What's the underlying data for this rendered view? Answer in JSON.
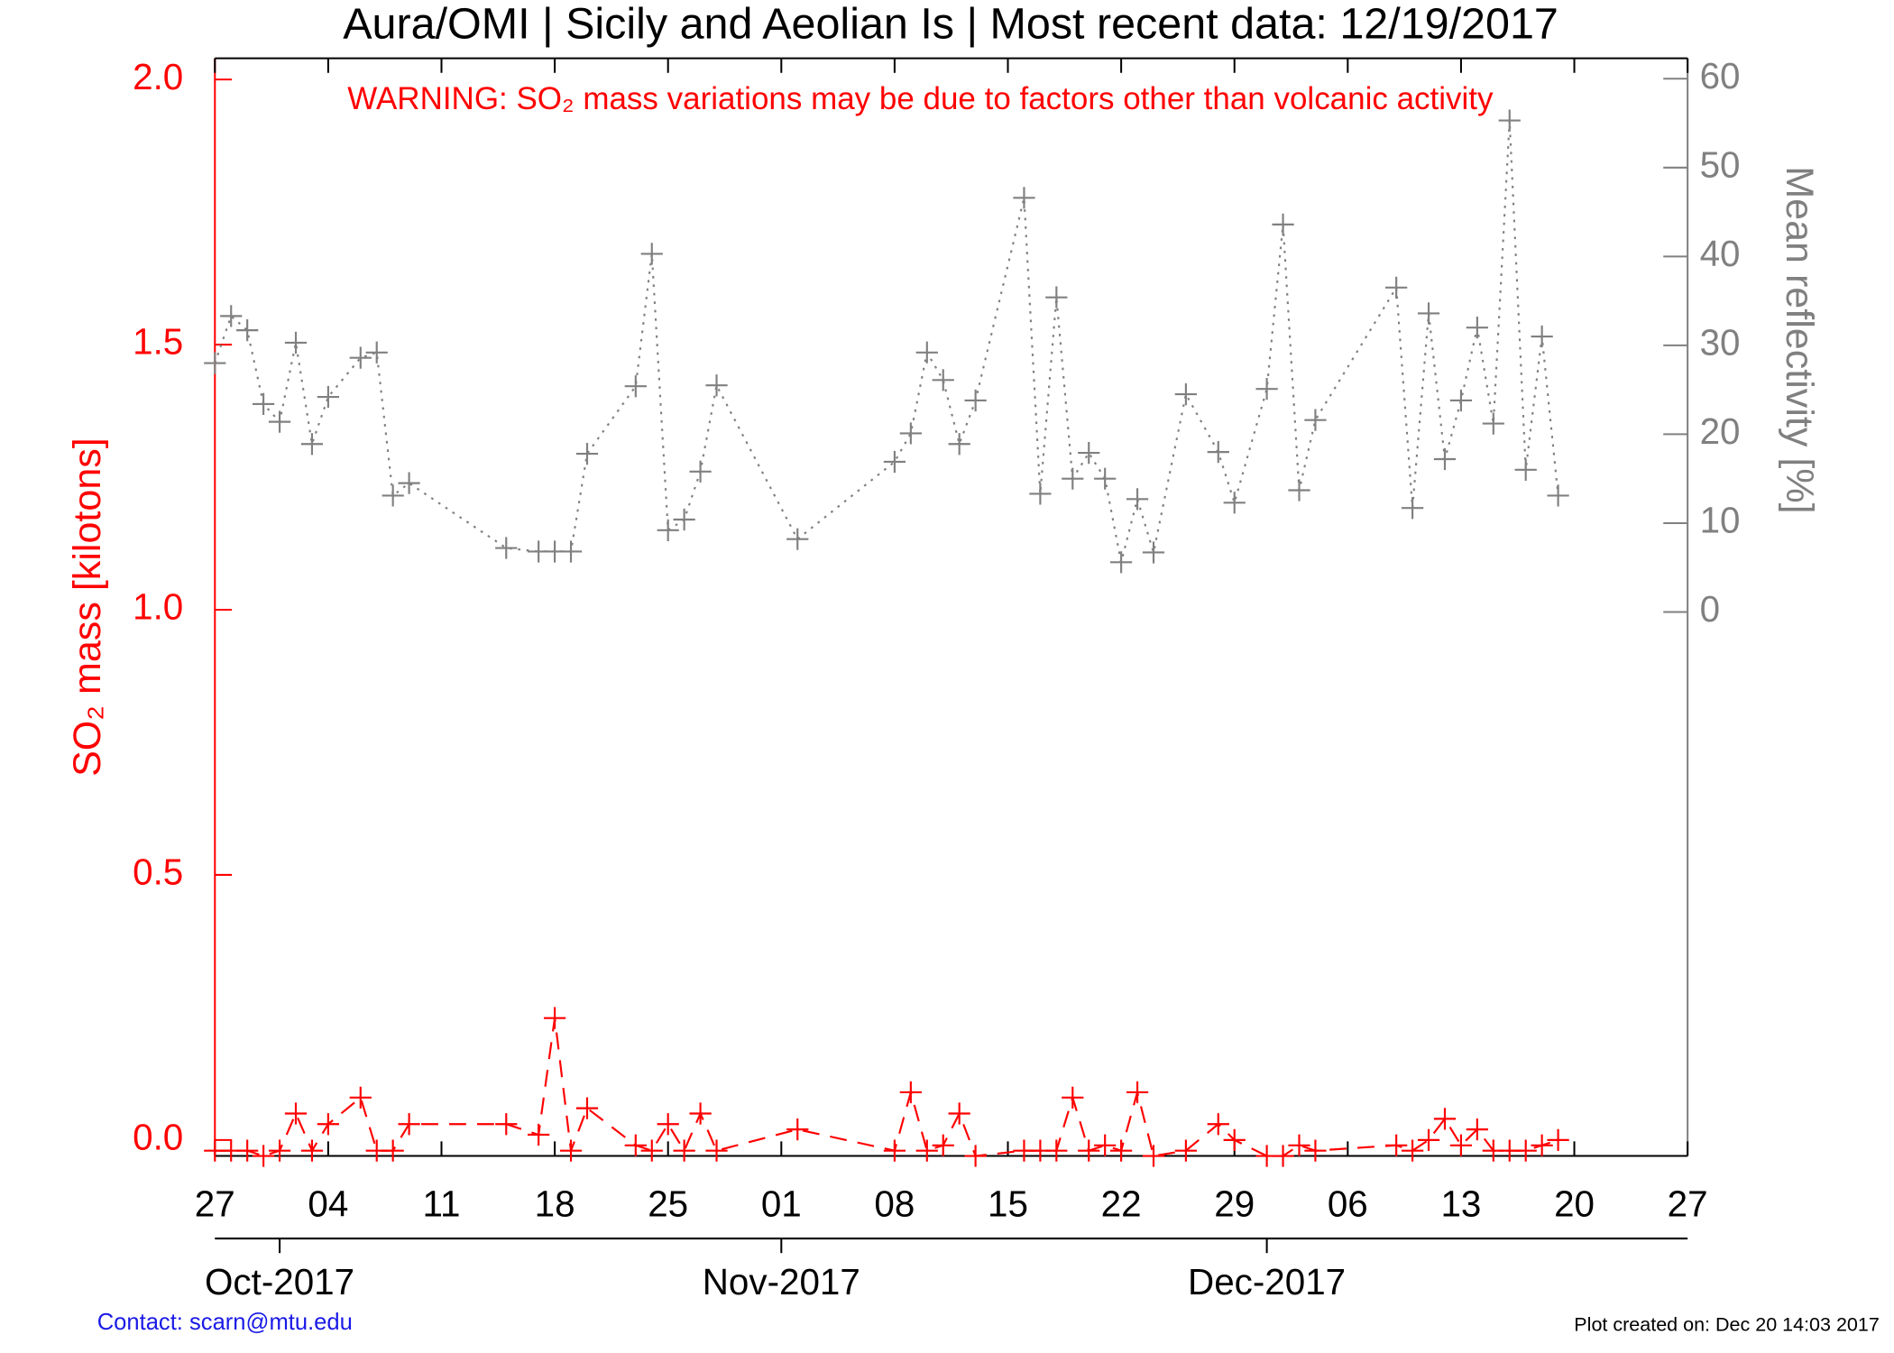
{
  "chart_data": {
    "type": "line",
    "title": "Aura/OMI | Sicily and Aeolian Is | Most recent data: 12/19/2017",
    "annotation": "WARNING: SO₂ mass variations may be due to factors other than volcanic activity",
    "y_label": "SO₂ mass [kilotons]",
    "y2_label": "Mean reflectivity [%]",
    "contact": "Contact: scarn@mtu.edu",
    "created": "Plot created on: Dec 20 14:03 2017",
    "x": [
      "2017-09-27",
      "2017-09-28",
      "2017-09-29",
      "2017-09-30",
      "2017-10-01",
      "2017-10-02",
      "2017-10-03",
      "2017-10-04",
      "2017-10-06",
      "2017-10-07",
      "2017-10-08",
      "2017-10-09",
      "2017-10-15",
      "2017-10-17",
      "2017-10-18",
      "2017-10-19",
      "2017-10-20",
      "2017-10-23",
      "2017-10-24",
      "2017-10-25",
      "2017-10-26",
      "2017-10-27",
      "2017-10-28",
      "2017-11-02",
      "2017-11-08",
      "2017-11-09",
      "2017-11-10",
      "2017-11-11",
      "2017-11-12",
      "2017-11-13",
      "2017-11-16",
      "2017-11-17",
      "2017-11-18",
      "2017-11-19",
      "2017-11-20",
      "2017-11-21",
      "2017-11-22",
      "2017-11-23",
      "2017-11-24",
      "2017-11-26",
      "2017-11-28",
      "2017-11-29",
      "2017-12-01",
      "2017-12-02",
      "2017-12-03",
      "2017-12-04",
      "2017-12-09",
      "2017-12-10",
      "2017-12-11",
      "2017-12-12",
      "2017-12-13",
      "2017-12-14",
      "2017-12-15",
      "2017-12-16",
      "2017-12-17",
      "2017-12-18",
      "2017-12-19"
    ],
    "series": [
      {
        "name": "SO₂ mass",
        "color": "#ff0000",
        "axis": "y",
        "line_style": "dash",
        "values": [
          -0.02,
          -0.02,
          -0.02,
          -0.03,
          -0.02,
          0.05,
          -0.02,
          0.03,
          0.08,
          -0.02,
          -0.02,
          0.03,
          0.03,
          0.01,
          0.23,
          -0.02,
          0.06,
          -0.01,
          -0.02,
          0.03,
          -0.02,
          0.05,
          -0.02,
          0.02,
          -0.02,
          0.09,
          -0.02,
          -0.01,
          0.05,
          -0.03,
          -0.02,
          -0.02,
          -0.02,
          0.08,
          -0.02,
          -0.01,
          -0.02,
          0.09,
          -0.03,
          -0.02,
          0.03,
          0.0,
          -0.03,
          -0.03,
          -0.01,
          -0.02,
          -0.01,
          -0.02,
          0.0,
          0.04,
          -0.01,
          0.02,
          -0.02,
          -0.02,
          -0.02,
          -0.01,
          0.0
        ]
      },
      {
        "name": "Mean reflectivity",
        "color": "#808080",
        "axis": "y2",
        "line_style": "dot",
        "values": [
          28,
          33.3,
          31.7,
          23.4,
          21.4,
          30.3,
          18.9,
          24.2,
          28.6,
          29.2,
          13.1,
          14.5,
          7.2,
          6.8,
          6.8,
          6.8,
          17.8,
          25.4,
          40.3,
          9.2,
          10.4,
          15.8,
          25.5,
          8.2,
          16.9,
          20.1,
          29.2,
          26.1,
          18.9,
          23.8,
          46.6,
          13.3,
          35.4,
          15.0,
          17.9,
          15.0,
          5.6,
          12.7,
          6.7,
          24.5,
          18.0,
          12.3,
          25.1,
          43.6,
          13.7,
          21.6,
          36.5,
          11.7,
          33.6,
          17.2,
          23.8,
          32.0,
          21.2,
          55.3,
          16.0,
          31.0,
          13.1
        ]
      }
    ],
    "xlim": [
      "2017-09-27",
      "2017-12-27"
    ],
    "xticks": [
      {
        "value": "2017-09-27",
        "label": "27"
      },
      {
        "value": "2017-10-04",
        "label": "04"
      },
      {
        "value": "2017-10-11",
        "label": "11"
      },
      {
        "value": "2017-10-18",
        "label": "18"
      },
      {
        "value": "2017-10-25",
        "label": "25"
      },
      {
        "value": "2017-11-01",
        "label": "01"
      },
      {
        "value": "2017-11-08",
        "label": "08"
      },
      {
        "value": "2017-11-15",
        "label": "15"
      },
      {
        "value": "2017-11-22",
        "label": "22"
      },
      {
        "value": "2017-11-29",
        "label": "29"
      },
      {
        "value": "2017-12-06",
        "label": "06"
      },
      {
        "value": "2017-12-13",
        "label": "13"
      },
      {
        "value": "2017-12-20",
        "label": "20"
      },
      {
        "value": "2017-12-27",
        "label": "27"
      }
    ],
    "month_ticks": [
      {
        "value": "2017-10-01",
        "label": "Oct-2017"
      },
      {
        "value": "2017-11-01",
        "label": "Nov-2017"
      },
      {
        "value": "2017-12-01",
        "label": "Dec-2017"
      }
    ],
    "ylim": [
      -0.03,
      2.04
    ],
    "yticks": [
      {
        "value": 0,
        "label": "0.0"
      },
      {
        "value": 0.5,
        "label": "0.5"
      },
      {
        "value": 1,
        "label": "1.0"
      },
      {
        "value": 1.5,
        "label": "1.5"
      },
      {
        "value": 2,
        "label": "2.0"
      }
    ],
    "y2lim": [
      -61.2,
      62.3
    ],
    "y2ticks": [
      0,
      10,
      20,
      30,
      40,
      50,
      60
    ]
  }
}
